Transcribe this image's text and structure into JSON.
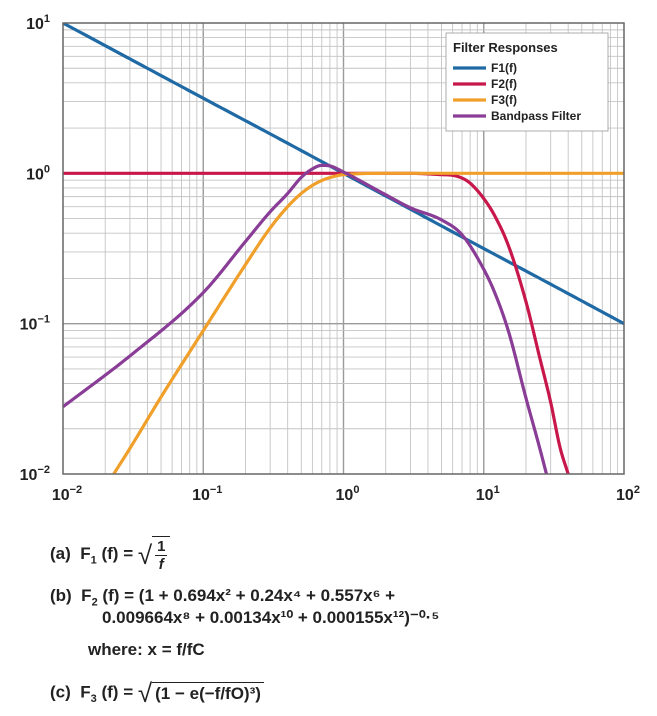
{
  "chart_data": {
    "type": "line",
    "xscale": "log",
    "yscale": "log",
    "xlim": [
      0.01,
      100
    ],
    "ylim": [
      0.01,
      10
    ],
    "grid": true,
    "legend_placement": "top-right",
    "legend_title": "Filter Responses",
    "x_ticks": [
      {
        "base": "10",
        "exp": "−2"
      },
      {
        "base": "10",
        "exp": "−1"
      },
      {
        "base": "10",
        "exp": "0"
      },
      {
        "base": "10",
        "exp": "1"
      },
      {
        "base": "10",
        "exp": "2"
      }
    ],
    "y_ticks": [
      {
        "base": "10",
        "exp": "1"
      },
      {
        "base": "10",
        "exp": "0"
      },
      {
        "base": "10",
        "exp": "−1"
      },
      {
        "base": "10",
        "exp": "−2"
      }
    ],
    "series": [
      {
        "name": "F1(f)",
        "color": "#1f6aa5",
        "x": [
          0.01,
          0.03,
          0.1,
          0.3,
          1,
          3,
          10,
          30,
          100
        ],
        "y": [
          10,
          5.77,
          3.16,
          1.83,
          1.0,
          0.577,
          0.316,
          0.183,
          0.1
        ]
      },
      {
        "name": "F2(f)",
        "color": "#c8174a",
        "x": [
          0.01,
          1,
          3,
          5,
          6,
          7,
          8,
          10,
          12,
          15,
          20,
          25,
          30,
          35,
          40
        ],
        "y": [
          1.0,
          1.0,
          1.0,
          0.98,
          0.97,
          0.93,
          0.86,
          0.68,
          0.52,
          0.33,
          0.14,
          0.06,
          0.03,
          0.015,
          0.01
        ]
      },
      {
        "name": "F3(f)",
        "color": "#f0a02a",
        "x": [
          0.023,
          0.03,
          0.05,
          0.1,
          0.2,
          0.3,
          0.4,
          0.5,
          0.6,
          0.7,
          0.8,
          1,
          2,
          100
        ],
        "y": [
          0.01,
          0.0148,
          0.0325,
          0.0899,
          0.247,
          0.433,
          0.601,
          0.735,
          0.831,
          0.896,
          0.937,
          0.98,
          1.0,
          1.0
        ]
      },
      {
        "name": "Bandpass Filter",
        "color": "#8a3d96",
        "x": [
          0.01,
          0.03,
          0.1,
          0.2,
          0.3,
          0.4,
          0.5,
          0.6,
          0.7,
          0.8,
          1,
          2,
          3,
          5,
          7,
          10,
          12,
          15,
          20,
          25,
          28
        ],
        "y": [
          0.028,
          0.061,
          0.161,
          0.352,
          0.555,
          0.735,
          0.94,
          1.07,
          1.13,
          1.12,
          1.02,
          0.72,
          0.59,
          0.49,
          0.39,
          0.23,
          0.16,
          0.089,
          0.032,
          0.015,
          0.01
        ]
      }
    ]
  },
  "equations": {
    "a": {
      "label": "(a)",
      "func": "F",
      "sub": "1",
      "arg": "(f) = ",
      "num": "1",
      "den": "f"
    },
    "b": {
      "label": "(b)",
      "func": "F",
      "sub": "2",
      "line1": "(f) = (1 + 0.694x² + 0.24x⁴ + 0.557x⁶ +",
      "line2": "0.009664x⁸ + 0.00134x¹⁰ + 0.000155x¹²)⁻⁰·⁵",
      "where": "where: x = f/fC"
    },
    "c": {
      "label": "(c)",
      "func": "F",
      "sub": "3",
      "arg": "(f) = ",
      "body": "(1 − e(−f/fO)³)"
    }
  }
}
